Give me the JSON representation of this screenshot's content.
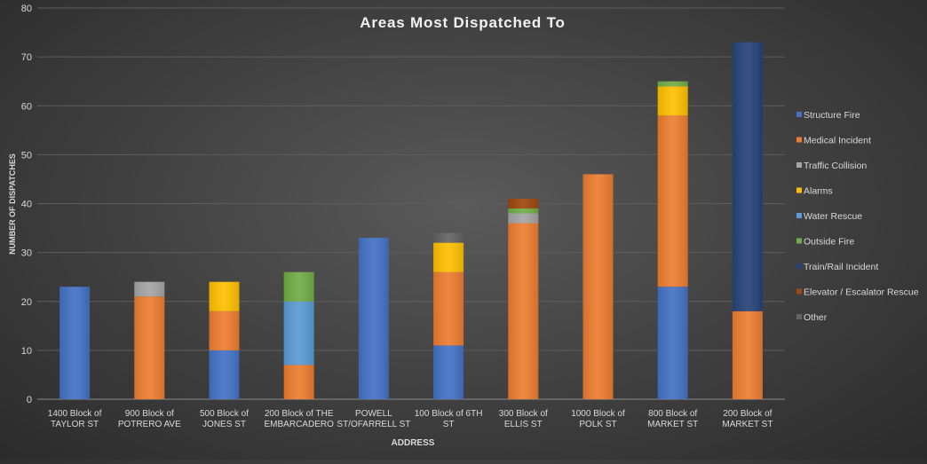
{
  "chart_data": {
    "type": "bar",
    "stacked": true,
    "title": "Areas Most Dispatched To",
    "xlabel": "ADDRESS",
    "ylabel": "NUMBER OF DISPATCHES",
    "ylim": [
      0,
      80
    ],
    "yticks": [
      0,
      10,
      20,
      30,
      40,
      50,
      60,
      70,
      80
    ],
    "grid": true,
    "legend_position": "right",
    "categories": [
      "1400 Block of TAYLOR ST",
      "900 Block of POTRERO AVE",
      "500 Block of JONES ST",
      "200 Block of THE EMBARCADERO",
      "POWELL ST/OFARRELL ST",
      "100 Block of 6TH ST",
      "300 Block of ELLIS ST",
      "1000 Block of POLK ST",
      "800 Block of MARKET ST",
      "200 Block of MARKET ST"
    ],
    "category_label_lines": [
      [
        "1400 Block of",
        "TAYLOR ST"
      ],
      [
        "900 Block of",
        "POTRERO AVE"
      ],
      [
        "500 Block of",
        "JONES ST"
      ],
      [
        "200 Block of THE",
        "EMBARCADERO"
      ],
      [
        "POWELL",
        "ST/OFARRELL ST"
      ],
      [
        "100 Block of 6TH",
        "ST"
      ],
      [
        "300 Block of",
        "ELLIS ST"
      ],
      [
        "1000 Block of",
        "POLK ST"
      ],
      [
        "800 Block of",
        "MARKET ST"
      ],
      [
        "200 Block of",
        "MARKET ST"
      ]
    ],
    "series": [
      {
        "name": "Structure Fire",
        "color": "#4472c4",
        "values": [
          23,
          0,
          10,
          0,
          33,
          11,
          0,
          0,
          23,
          0
        ]
      },
      {
        "name": "Medical Incident",
        "color": "#ed7d31",
        "values": [
          0,
          21,
          8,
          7,
          0,
          15,
          36,
          46,
          35,
          18
        ]
      },
      {
        "name": "Traffic Collision",
        "color": "#a5a5a5",
        "values": [
          0,
          3,
          0,
          0,
          0,
          0,
          2,
          0,
          0,
          0
        ]
      },
      {
        "name": "Alarms",
        "color": "#ffc000",
        "values": [
          0,
          0,
          6,
          0,
          0,
          6,
          0,
          0,
          6,
          0
        ]
      },
      {
        "name": "Water Rescue",
        "color": "#5b9bd5",
        "values": [
          0,
          0,
          0,
          13,
          0,
          0,
          0,
          0,
          0,
          0
        ]
      },
      {
        "name": "Outside Fire",
        "color": "#70ad47",
        "values": [
          0,
          0,
          0,
          6,
          0,
          0,
          1,
          0,
          1,
          0
        ]
      },
      {
        "name": "Train/Rail Incident",
        "color": "#264478",
        "values": [
          0,
          0,
          0,
          0,
          0,
          0,
          0,
          0,
          0,
          55
        ]
      },
      {
        "name": "Elevator / Escalator Rescue",
        "color": "#9e480e",
        "values": [
          0,
          0,
          0,
          0,
          0,
          0,
          2,
          0,
          0,
          0
        ]
      },
      {
        "name": "Other",
        "color": "#636363",
        "values": [
          0,
          0,
          0,
          0,
          0,
          2,
          0,
          0,
          0,
          0
        ]
      }
    ]
  }
}
